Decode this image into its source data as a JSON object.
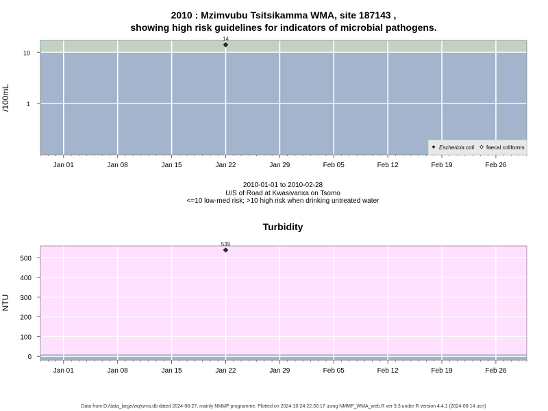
{
  "page": {
    "title_line1": "2010 : Mzimvubu Tsitsikamma WMA, site 187143 ,",
    "title_line2": "showing high risk guidelines for indicators of microbial pathogens.",
    "subtitle_line1": "2010-01-01 to 2010-02-28",
    "subtitle_line2": "U/S of Road at Kwasivanxa on Tsomo",
    "subtitle_line3": "<=10 low-med risk; >10 high risk when drinking untreated water",
    "footer": "Data from D:/data_large/wq/wms.db dated 2024-08-27, mainly NMMP programme. Plotted on 2024-10-24 22:30:17 using NMMP_WMA_web.R ver 9.3 under R version 4.4.1 (2024-06-14 ucrt)"
  },
  "colors": {
    "low_risk_band": "#a3b4cc",
    "high_risk_band": "#c3d1c3",
    "turbidity_bg": "#ffe0ff",
    "turbidity_low_band": "#a3b4cc",
    "grid": "#ffffff",
    "point": "#333333"
  },
  "chart_data": [
    {
      "type": "scatter",
      "ylabel": "/100mL",
      "yscale": "log",
      "x_range": [
        "2009-12-29",
        "2010-03-02"
      ],
      "x_ticks": [
        "Jan 01",
        "Jan 08",
        "Jan 15",
        "Jan 22",
        "Jan 29",
        "Feb 05",
        "Feb 12",
        "Feb 19",
        "Feb 26"
      ],
      "x_tick_dates": [
        "2010-01-01",
        "2010-01-08",
        "2010-01-15",
        "2010-01-22",
        "2010-01-29",
        "2010-02-05",
        "2010-02-12",
        "2010-02-19",
        "2010-02-26"
      ],
      "y_ticks": [
        "1",
        "10"
      ],
      "y_tick_values": [
        1,
        10
      ],
      "ylim": [
        0.1,
        17
      ],
      "guideline": 10,
      "legend_position": "bottom-right",
      "series": [
        {
          "name": "Eschericia coli",
          "marker": "filled-diamond",
          "points": [
            {
              "x": "2010-01-22",
              "y": 14,
              "label": "14"
            }
          ]
        },
        {
          "name": "faecal coliforms",
          "marker": "open-diamond",
          "points": []
        }
      ]
    },
    {
      "type": "scatter",
      "title": "Turbidity",
      "ylabel": "NTU",
      "x_range": [
        "2009-12-29",
        "2010-03-02"
      ],
      "x_ticks": [
        "Jan 01",
        "Jan 08",
        "Jan 15",
        "Jan 22",
        "Jan 29",
        "Feb 05",
        "Feb 12",
        "Feb 19",
        "Feb 26"
      ],
      "x_tick_dates": [
        "2010-01-01",
        "2010-01-08",
        "2010-01-15",
        "2010-01-22",
        "2010-01-29",
        "2010-02-05",
        "2010-02-12",
        "2010-02-19",
        "2010-02-26"
      ],
      "y_ticks": [
        "0",
        "100",
        "200",
        "300",
        "400",
        "500"
      ],
      "y_tick_values": [
        0,
        100,
        200,
        300,
        400,
        500
      ],
      "ylim": [
        -20,
        560
      ],
      "guideline": 10,
      "series": [
        {
          "name": "Turbidity",
          "marker": "filled-diamond",
          "points": [
            {
              "x": "2010-01-22",
              "y": 539,
              "label": "539"
            }
          ]
        }
      ]
    }
  ]
}
